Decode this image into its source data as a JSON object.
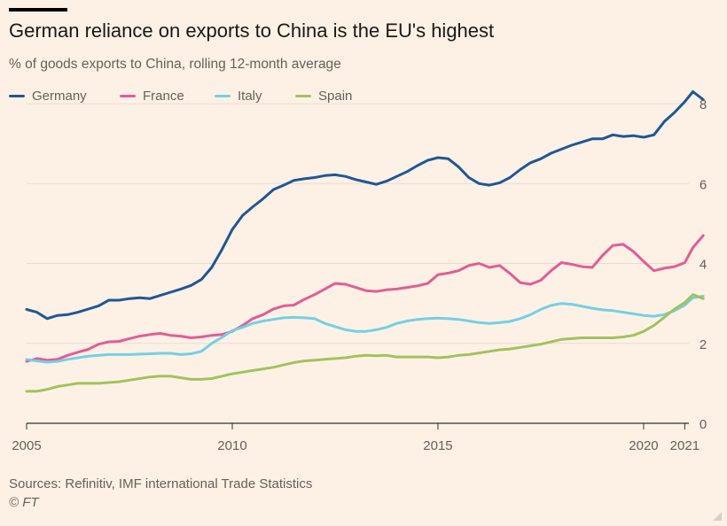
{
  "page": {
    "title": "German reliance on exports to China is the EU's highest",
    "subtitle": "% of goods exports to China, rolling 12-month average",
    "source": "Sources: Refinitiv, IMF international Trade Statistics",
    "credit": "© FT"
  },
  "chart_data": {
    "type": "line",
    "xlim": [
      2005.0,
      2021.1
    ],
    "ylim": [
      0,
      8.6
    ],
    "x_ticks": [
      2005,
      2010,
      2015,
      2020,
      2021
    ],
    "x_tick_labels": [
      "2005",
      "2010",
      "2015",
      "2020",
      "2021"
    ],
    "y_ticks": [
      0,
      2,
      4,
      6,
      8
    ],
    "y_tick_labels": [
      "0",
      "2",
      "4",
      "6",
      "8"
    ],
    "grid": "horizontal",
    "legend_position": "top-left",
    "series": [
      {
        "name": "Germany",
        "color": "#1f5796",
        "points": [
          [
            2005.0,
            2.85
          ],
          [
            2005.25,
            2.78
          ],
          [
            2005.5,
            2.62
          ],
          [
            2005.75,
            2.7
          ],
          [
            2006.0,
            2.72
          ],
          [
            2006.25,
            2.78
          ],
          [
            2006.5,
            2.86
          ],
          [
            2006.75,
            2.94
          ],
          [
            2007.0,
            3.08
          ],
          [
            2007.25,
            3.08
          ],
          [
            2007.5,
            3.12
          ],
          [
            2007.75,
            3.14
          ],
          [
            2008.0,
            3.12
          ],
          [
            2008.25,
            3.2
          ],
          [
            2008.5,
            3.28
          ],
          [
            2008.75,
            3.36
          ],
          [
            2009.0,
            3.45
          ],
          [
            2009.25,
            3.6
          ],
          [
            2009.5,
            3.9
          ],
          [
            2009.75,
            4.35
          ],
          [
            2010.0,
            4.85
          ],
          [
            2010.25,
            5.2
          ],
          [
            2010.5,
            5.42
          ],
          [
            2010.75,
            5.62
          ],
          [
            2011.0,
            5.85
          ],
          [
            2011.25,
            5.96
          ],
          [
            2011.5,
            6.08
          ],
          [
            2011.75,
            6.12
          ],
          [
            2012.0,
            6.15
          ],
          [
            2012.25,
            6.2
          ],
          [
            2012.5,
            6.22
          ],
          [
            2012.75,
            6.18
          ],
          [
            2013.0,
            6.1
          ],
          [
            2013.25,
            6.04
          ],
          [
            2013.5,
            5.98
          ],
          [
            2013.75,
            6.06
          ],
          [
            2014.0,
            6.18
          ],
          [
            2014.25,
            6.3
          ],
          [
            2014.5,
            6.45
          ],
          [
            2014.75,
            6.58
          ],
          [
            2015.0,
            6.65
          ],
          [
            2015.25,
            6.62
          ],
          [
            2015.5,
            6.42
          ],
          [
            2015.75,
            6.15
          ],
          [
            2016.0,
            6.0
          ],
          [
            2016.25,
            5.96
          ],
          [
            2016.5,
            6.02
          ],
          [
            2016.75,
            6.15
          ],
          [
            2017.0,
            6.35
          ],
          [
            2017.25,
            6.52
          ],
          [
            2017.5,
            6.62
          ],
          [
            2017.75,
            6.76
          ],
          [
            2018.0,
            6.86
          ],
          [
            2018.25,
            6.96
          ],
          [
            2018.5,
            7.04
          ],
          [
            2018.75,
            7.12
          ],
          [
            2019.0,
            7.12
          ],
          [
            2019.25,
            7.22
          ],
          [
            2019.5,
            7.18
          ],
          [
            2019.75,
            7.2
          ],
          [
            2020.0,
            7.16
          ],
          [
            2020.25,
            7.22
          ],
          [
            2020.5,
            7.55
          ],
          [
            2020.75,
            7.78
          ],
          [
            2021.0,
            8.05
          ],
          [
            2021.2,
            8.3
          ],
          [
            2021.45,
            8.1
          ]
        ]
      },
      {
        "name": "France",
        "color": "#e35d94",
        "points": [
          [
            2005.0,
            1.55
          ],
          [
            2005.25,
            1.62
          ],
          [
            2005.5,
            1.58
          ],
          [
            2005.75,
            1.6
          ],
          [
            2006.0,
            1.7
          ],
          [
            2006.25,
            1.78
          ],
          [
            2006.5,
            1.85
          ],
          [
            2006.75,
            1.98
          ],
          [
            2007.0,
            2.04
          ],
          [
            2007.25,
            2.05
          ],
          [
            2007.5,
            2.12
          ],
          [
            2007.75,
            2.18
          ],
          [
            2008.0,
            2.22
          ],
          [
            2008.25,
            2.25
          ],
          [
            2008.5,
            2.2
          ],
          [
            2008.75,
            2.18
          ],
          [
            2009.0,
            2.14
          ],
          [
            2009.25,
            2.16
          ],
          [
            2009.5,
            2.2
          ],
          [
            2009.75,
            2.22
          ],
          [
            2010.0,
            2.3
          ],
          [
            2010.25,
            2.45
          ],
          [
            2010.5,
            2.62
          ],
          [
            2010.75,
            2.72
          ],
          [
            2011.0,
            2.86
          ],
          [
            2011.25,
            2.94
          ],
          [
            2011.5,
            2.96
          ],
          [
            2011.75,
            3.1
          ],
          [
            2012.0,
            3.22
          ],
          [
            2012.25,
            3.36
          ],
          [
            2012.5,
            3.5
          ],
          [
            2012.75,
            3.48
          ],
          [
            2013.0,
            3.4
          ],
          [
            2013.25,
            3.32
          ],
          [
            2013.5,
            3.3
          ],
          [
            2013.75,
            3.34
          ],
          [
            2014.0,
            3.36
          ],
          [
            2014.25,
            3.4
          ],
          [
            2014.5,
            3.44
          ],
          [
            2014.75,
            3.5
          ],
          [
            2015.0,
            3.72
          ],
          [
            2015.25,
            3.76
          ],
          [
            2015.5,
            3.82
          ],
          [
            2015.75,
            3.95
          ],
          [
            2016.0,
            4.0
          ],
          [
            2016.25,
            3.9
          ],
          [
            2016.5,
            3.95
          ],
          [
            2016.75,
            3.75
          ],
          [
            2017.0,
            3.52
          ],
          [
            2017.25,
            3.48
          ],
          [
            2017.5,
            3.58
          ],
          [
            2017.75,
            3.82
          ],
          [
            2018.0,
            4.02
          ],
          [
            2018.25,
            3.98
          ],
          [
            2018.5,
            3.92
          ],
          [
            2018.75,
            3.9
          ],
          [
            2019.0,
            4.2
          ],
          [
            2019.25,
            4.45
          ],
          [
            2019.5,
            4.48
          ],
          [
            2019.75,
            4.3
          ],
          [
            2020.0,
            4.05
          ],
          [
            2020.25,
            3.82
          ],
          [
            2020.5,
            3.88
          ],
          [
            2020.75,
            3.92
          ],
          [
            2021.0,
            4.02
          ],
          [
            2021.2,
            4.4
          ],
          [
            2021.45,
            4.7
          ]
        ]
      },
      {
        "name": "Italy",
        "color": "#74d0e4",
        "points": [
          [
            2005.0,
            1.6
          ],
          [
            2005.25,
            1.56
          ],
          [
            2005.5,
            1.53
          ],
          [
            2005.75,
            1.55
          ],
          [
            2006.0,
            1.6
          ],
          [
            2006.25,
            1.64
          ],
          [
            2006.5,
            1.68
          ],
          [
            2006.75,
            1.7
          ],
          [
            2007.0,
            1.72
          ],
          [
            2007.25,
            1.72
          ],
          [
            2007.5,
            1.72
          ],
          [
            2007.75,
            1.73
          ],
          [
            2008.0,
            1.74
          ],
          [
            2008.25,
            1.75
          ],
          [
            2008.5,
            1.75
          ],
          [
            2008.75,
            1.72
          ],
          [
            2009.0,
            1.74
          ],
          [
            2009.25,
            1.8
          ],
          [
            2009.5,
            2.0
          ],
          [
            2009.75,
            2.15
          ],
          [
            2010.0,
            2.32
          ],
          [
            2010.25,
            2.4
          ],
          [
            2010.5,
            2.5
          ],
          [
            2010.75,
            2.56
          ],
          [
            2011.0,
            2.6
          ],
          [
            2011.25,
            2.64
          ],
          [
            2011.5,
            2.65
          ],
          [
            2011.75,
            2.64
          ],
          [
            2012.0,
            2.62
          ],
          [
            2012.25,
            2.5
          ],
          [
            2012.5,
            2.42
          ],
          [
            2012.75,
            2.34
          ],
          [
            2013.0,
            2.3
          ],
          [
            2013.25,
            2.3
          ],
          [
            2013.5,
            2.34
          ],
          [
            2013.75,
            2.4
          ],
          [
            2014.0,
            2.5
          ],
          [
            2014.25,
            2.56
          ],
          [
            2014.5,
            2.6
          ],
          [
            2014.75,
            2.62
          ],
          [
            2015.0,
            2.63
          ],
          [
            2015.25,
            2.62
          ],
          [
            2015.5,
            2.6
          ],
          [
            2015.75,
            2.56
          ],
          [
            2016.0,
            2.52
          ],
          [
            2016.25,
            2.5
          ],
          [
            2016.5,
            2.52
          ],
          [
            2016.75,
            2.55
          ],
          [
            2017.0,
            2.62
          ],
          [
            2017.25,
            2.72
          ],
          [
            2017.5,
            2.85
          ],
          [
            2017.75,
            2.95
          ],
          [
            2018.0,
            3.0
          ],
          [
            2018.25,
            2.98
          ],
          [
            2018.5,
            2.93
          ],
          [
            2018.75,
            2.88
          ],
          [
            2019.0,
            2.84
          ],
          [
            2019.25,
            2.82
          ],
          [
            2019.5,
            2.78
          ],
          [
            2019.75,
            2.74
          ],
          [
            2020.0,
            2.7
          ],
          [
            2020.25,
            2.68
          ],
          [
            2020.5,
            2.72
          ],
          [
            2020.75,
            2.82
          ],
          [
            2021.0,
            2.96
          ],
          [
            2021.2,
            3.14
          ],
          [
            2021.45,
            3.18
          ]
        ]
      },
      {
        "name": "Spain",
        "color": "#a0c45a",
        "points": [
          [
            2005.0,
            0.8
          ],
          [
            2005.25,
            0.8
          ],
          [
            2005.5,
            0.85
          ],
          [
            2005.75,
            0.92
          ],
          [
            2006.0,
            0.96
          ],
          [
            2006.25,
            1.0
          ],
          [
            2006.5,
            1.0
          ],
          [
            2006.75,
            1.0
          ],
          [
            2007.0,
            1.02
          ],
          [
            2007.25,
            1.04
          ],
          [
            2007.5,
            1.08
          ],
          [
            2007.75,
            1.12
          ],
          [
            2008.0,
            1.16
          ],
          [
            2008.25,
            1.18
          ],
          [
            2008.5,
            1.18
          ],
          [
            2008.75,
            1.14
          ],
          [
            2009.0,
            1.1
          ],
          [
            2009.25,
            1.1
          ],
          [
            2009.5,
            1.12
          ],
          [
            2009.75,
            1.18
          ],
          [
            2010.0,
            1.24
          ],
          [
            2010.25,
            1.28
          ],
          [
            2010.5,
            1.32
          ],
          [
            2010.75,
            1.36
          ],
          [
            2011.0,
            1.4
          ],
          [
            2011.25,
            1.46
          ],
          [
            2011.5,
            1.52
          ],
          [
            2011.75,
            1.56
          ],
          [
            2012.0,
            1.58
          ],
          [
            2012.25,
            1.6
          ],
          [
            2012.5,
            1.62
          ],
          [
            2012.75,
            1.64
          ],
          [
            2013.0,
            1.68
          ],
          [
            2013.25,
            1.7
          ],
          [
            2013.5,
            1.69
          ],
          [
            2013.75,
            1.7
          ],
          [
            2014.0,
            1.66
          ],
          [
            2014.25,
            1.66
          ],
          [
            2014.5,
            1.66
          ],
          [
            2014.75,
            1.66
          ],
          [
            2015.0,
            1.64
          ],
          [
            2015.25,
            1.66
          ],
          [
            2015.5,
            1.7
          ],
          [
            2015.75,
            1.72
          ],
          [
            2016.0,
            1.76
          ],
          [
            2016.25,
            1.8
          ],
          [
            2016.5,
            1.84
          ],
          [
            2016.75,
            1.86
          ],
          [
            2017.0,
            1.9
          ],
          [
            2017.25,
            1.94
          ],
          [
            2017.5,
            1.98
          ],
          [
            2017.75,
            2.04
          ],
          [
            2018.0,
            2.1
          ],
          [
            2018.25,
            2.12
          ],
          [
            2018.5,
            2.14
          ],
          [
            2018.75,
            2.14
          ],
          [
            2019.0,
            2.14
          ],
          [
            2019.25,
            2.14
          ],
          [
            2019.5,
            2.16
          ],
          [
            2019.75,
            2.2
          ],
          [
            2020.0,
            2.3
          ],
          [
            2020.25,
            2.45
          ],
          [
            2020.5,
            2.65
          ],
          [
            2020.75,
            2.86
          ],
          [
            2021.0,
            3.02
          ],
          [
            2021.2,
            3.22
          ],
          [
            2021.45,
            3.12
          ]
        ]
      }
    ]
  }
}
